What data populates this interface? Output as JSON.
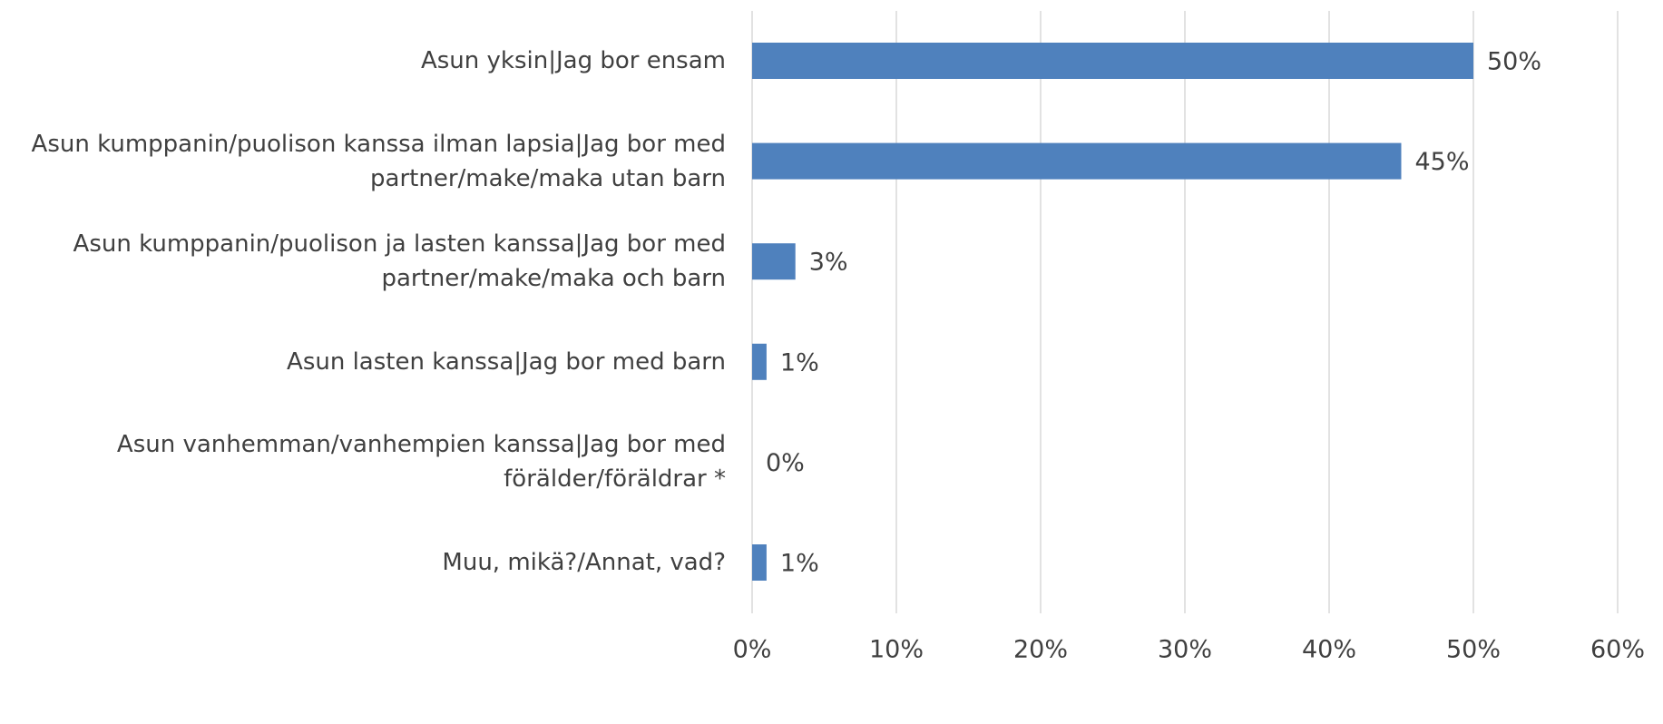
{
  "chart_data": {
    "type": "bar",
    "orientation": "horizontal",
    "categories": [
      "Asun yksin|Jag bor ensam",
      "Asun kumppanin/puolison kanssa ilman lapsia|Jag bor med partner/make/maka utan barn",
      "Asun kumppanin/puolison ja lasten kanssa|Jag bor med partner/make/maka och barn",
      "Asun lasten kanssa|Jag bor med barn",
      "Asun vanhemman/vanhempien kanssa|Jag bor med förälder/föräldrar *",
      "Muu, mikä?/Annat, vad?"
    ],
    "values": [
      50,
      45,
      3,
      1,
      0,
      1
    ],
    "value_labels": [
      "50%",
      "45%",
      "3%",
      "1%",
      "0%",
      "1%"
    ],
    "color": "#4f81bd",
    "xlim": [
      0,
      60
    ],
    "xticks": [
      {
        "value": 0,
        "label": "0%"
      },
      {
        "value": 10,
        "label": "10%"
      },
      {
        "value": 20,
        "label": "20%"
      },
      {
        "value": 30,
        "label": "30%"
      },
      {
        "value": 40,
        "label": "40%"
      },
      {
        "value": 50,
        "label": "50%"
      },
      {
        "value": 60,
        "label": "60%"
      }
    ],
    "grid": true
  }
}
